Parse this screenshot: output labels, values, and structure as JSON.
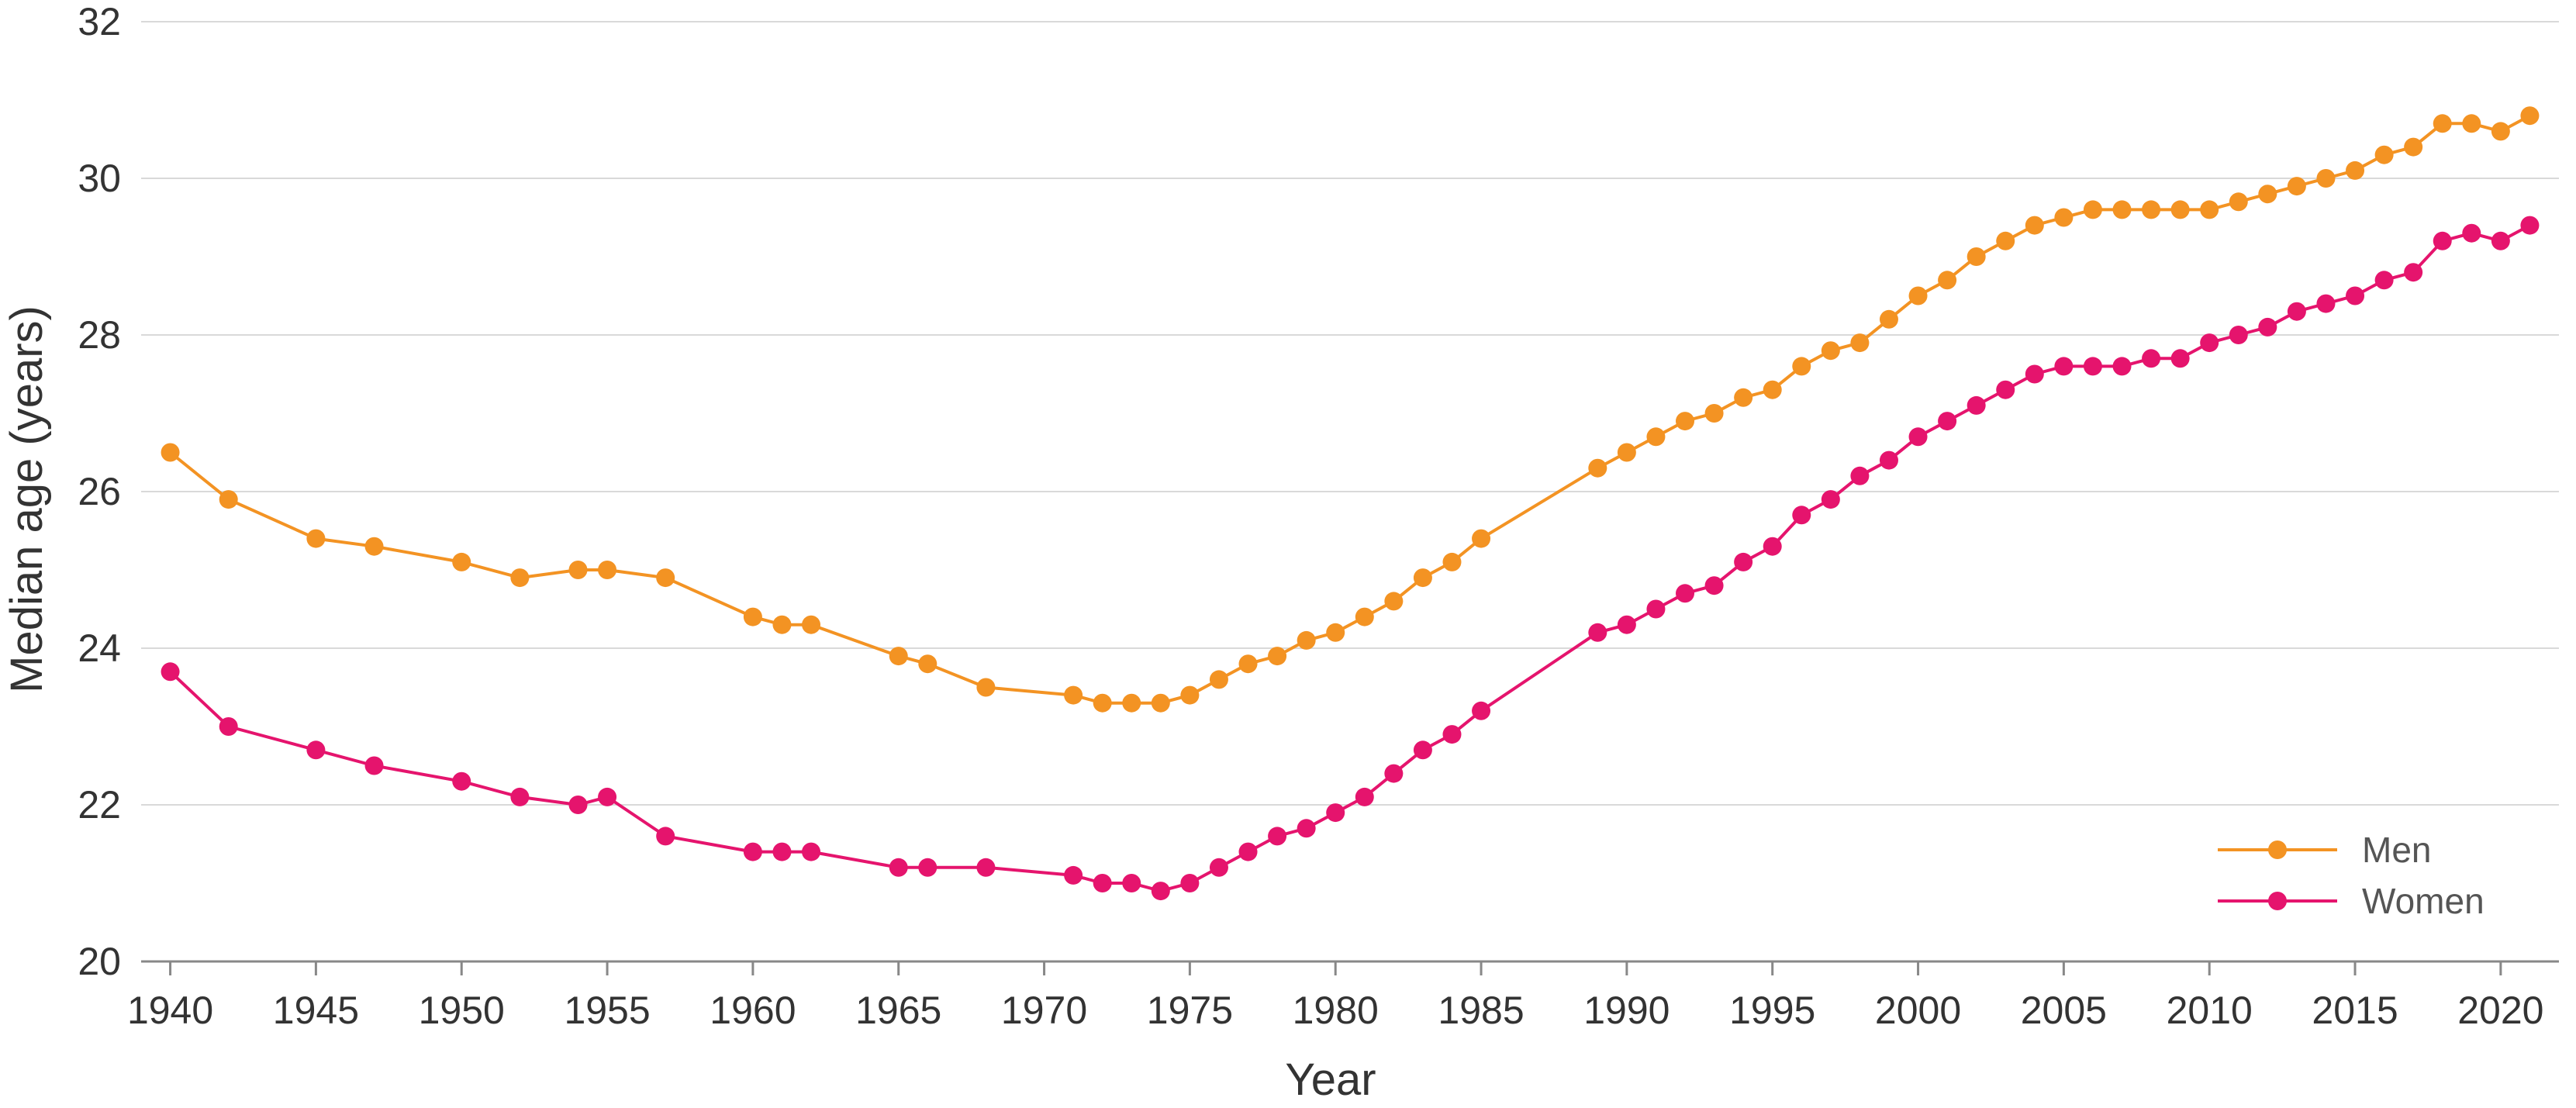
{
  "chart_data": {
    "type": "line",
    "title": "",
    "xlabel": "Year",
    "ylabel": "Median age (years)",
    "xlim": [
      1939,
      2022
    ],
    "ylim": [
      20,
      32
    ],
    "xticks": [
      1940,
      1945,
      1950,
      1955,
      1960,
      1965,
      1970,
      1975,
      1980,
      1985,
      1990,
      1995,
      2000,
      2005,
      2010,
      2015,
      2020
    ],
    "yticks": [
      20,
      22,
      24,
      26,
      28,
      30,
      32
    ],
    "grid": "horizontal",
    "legend": "bottom-right",
    "series": [
      {
        "name": "Men",
        "color": "#F39323",
        "x": [
          1940,
          1942,
          1945,
          1947,
          1950,
          1952,
          1954,
          1955,
          1957,
          1960,
          1961,
          1962,
          1965,
          1966,
          1968,
          1971,
          1972,
          1973,
          1974,
          1975,
          1976,
          1977,
          1978,
          1979,
          1980,
          1981,
          1982,
          1983,
          1984,
          1985,
          1989,
          1990,
          1991,
          1992,
          1993,
          1994,
          1995,
          1996,
          1997,
          1998,
          1999,
          2000,
          2001,
          2002,
          2003,
          2004,
          2005,
          2006,
          2007,
          2008,
          2009,
          2010,
          2011,
          2012,
          2013,
          2014,
          2015,
          2016,
          2017,
          2018,
          2019,
          2020,
          2021
        ],
        "values": [
          26.5,
          25.9,
          25.4,
          25.3,
          25.1,
          24.9,
          25.0,
          25.0,
          24.9,
          24.4,
          24.3,
          24.3,
          23.9,
          23.8,
          23.5,
          23.4,
          23.3,
          23.3,
          23.3,
          23.4,
          23.6,
          23.8,
          23.9,
          24.1,
          24.2,
          24.4,
          24.6,
          24.9,
          25.1,
          25.4,
          26.3,
          26.5,
          26.7,
          26.9,
          27.0,
          27.2,
          27.3,
          27.6,
          27.8,
          27.9,
          28.2,
          28.5,
          28.7,
          29.0,
          29.2,
          29.4,
          29.5,
          29.6,
          29.6,
          29.6,
          29.6,
          29.6,
          29.7,
          29.8,
          29.9,
          30.0,
          30.1,
          30.3,
          30.4,
          30.7,
          30.7,
          30.6,
          30.8
        ]
      },
      {
        "name": "Women",
        "color": "#E5146D",
        "x": [
          1940,
          1942,
          1945,
          1947,
          1950,
          1952,
          1954,
          1955,
          1957,
          1960,
          1961,
          1962,
          1965,
          1966,
          1968,
          1971,
          1972,
          1973,
          1974,
          1975,
          1976,
          1977,
          1978,
          1979,
          1980,
          1981,
          1982,
          1983,
          1984,
          1985,
          1989,
          1990,
          1991,
          1992,
          1993,
          1994,
          1995,
          1996,
          1997,
          1998,
          1999,
          2000,
          2001,
          2002,
          2003,
          2004,
          2005,
          2006,
          2007,
          2008,
          2009,
          2010,
          2011,
          2012,
          2013,
          2014,
          2015,
          2016,
          2017,
          2018,
          2019,
          2020,
          2021
        ],
        "values": [
          23.7,
          23.0,
          22.7,
          22.5,
          22.3,
          22.1,
          22.0,
          22.1,
          21.6,
          21.4,
          21.4,
          21.4,
          21.2,
          21.2,
          21.2,
          21.1,
          21.0,
          21.0,
          20.9,
          21.0,
          21.2,
          21.4,
          21.6,
          21.7,
          21.9,
          22.1,
          22.4,
          22.7,
          22.9,
          23.2,
          24.2,
          24.3,
          24.5,
          24.7,
          24.8,
          25.1,
          25.3,
          25.7,
          25.9,
          26.2,
          26.4,
          26.7,
          26.9,
          27.1,
          27.3,
          27.5,
          27.6,
          27.6,
          27.6,
          27.7,
          27.7,
          27.9,
          28.0,
          28.1,
          28.3,
          28.4,
          28.5,
          28.7,
          28.8,
          29.2,
          29.3,
          29.2,
          29.4
        ]
      }
    ]
  }
}
